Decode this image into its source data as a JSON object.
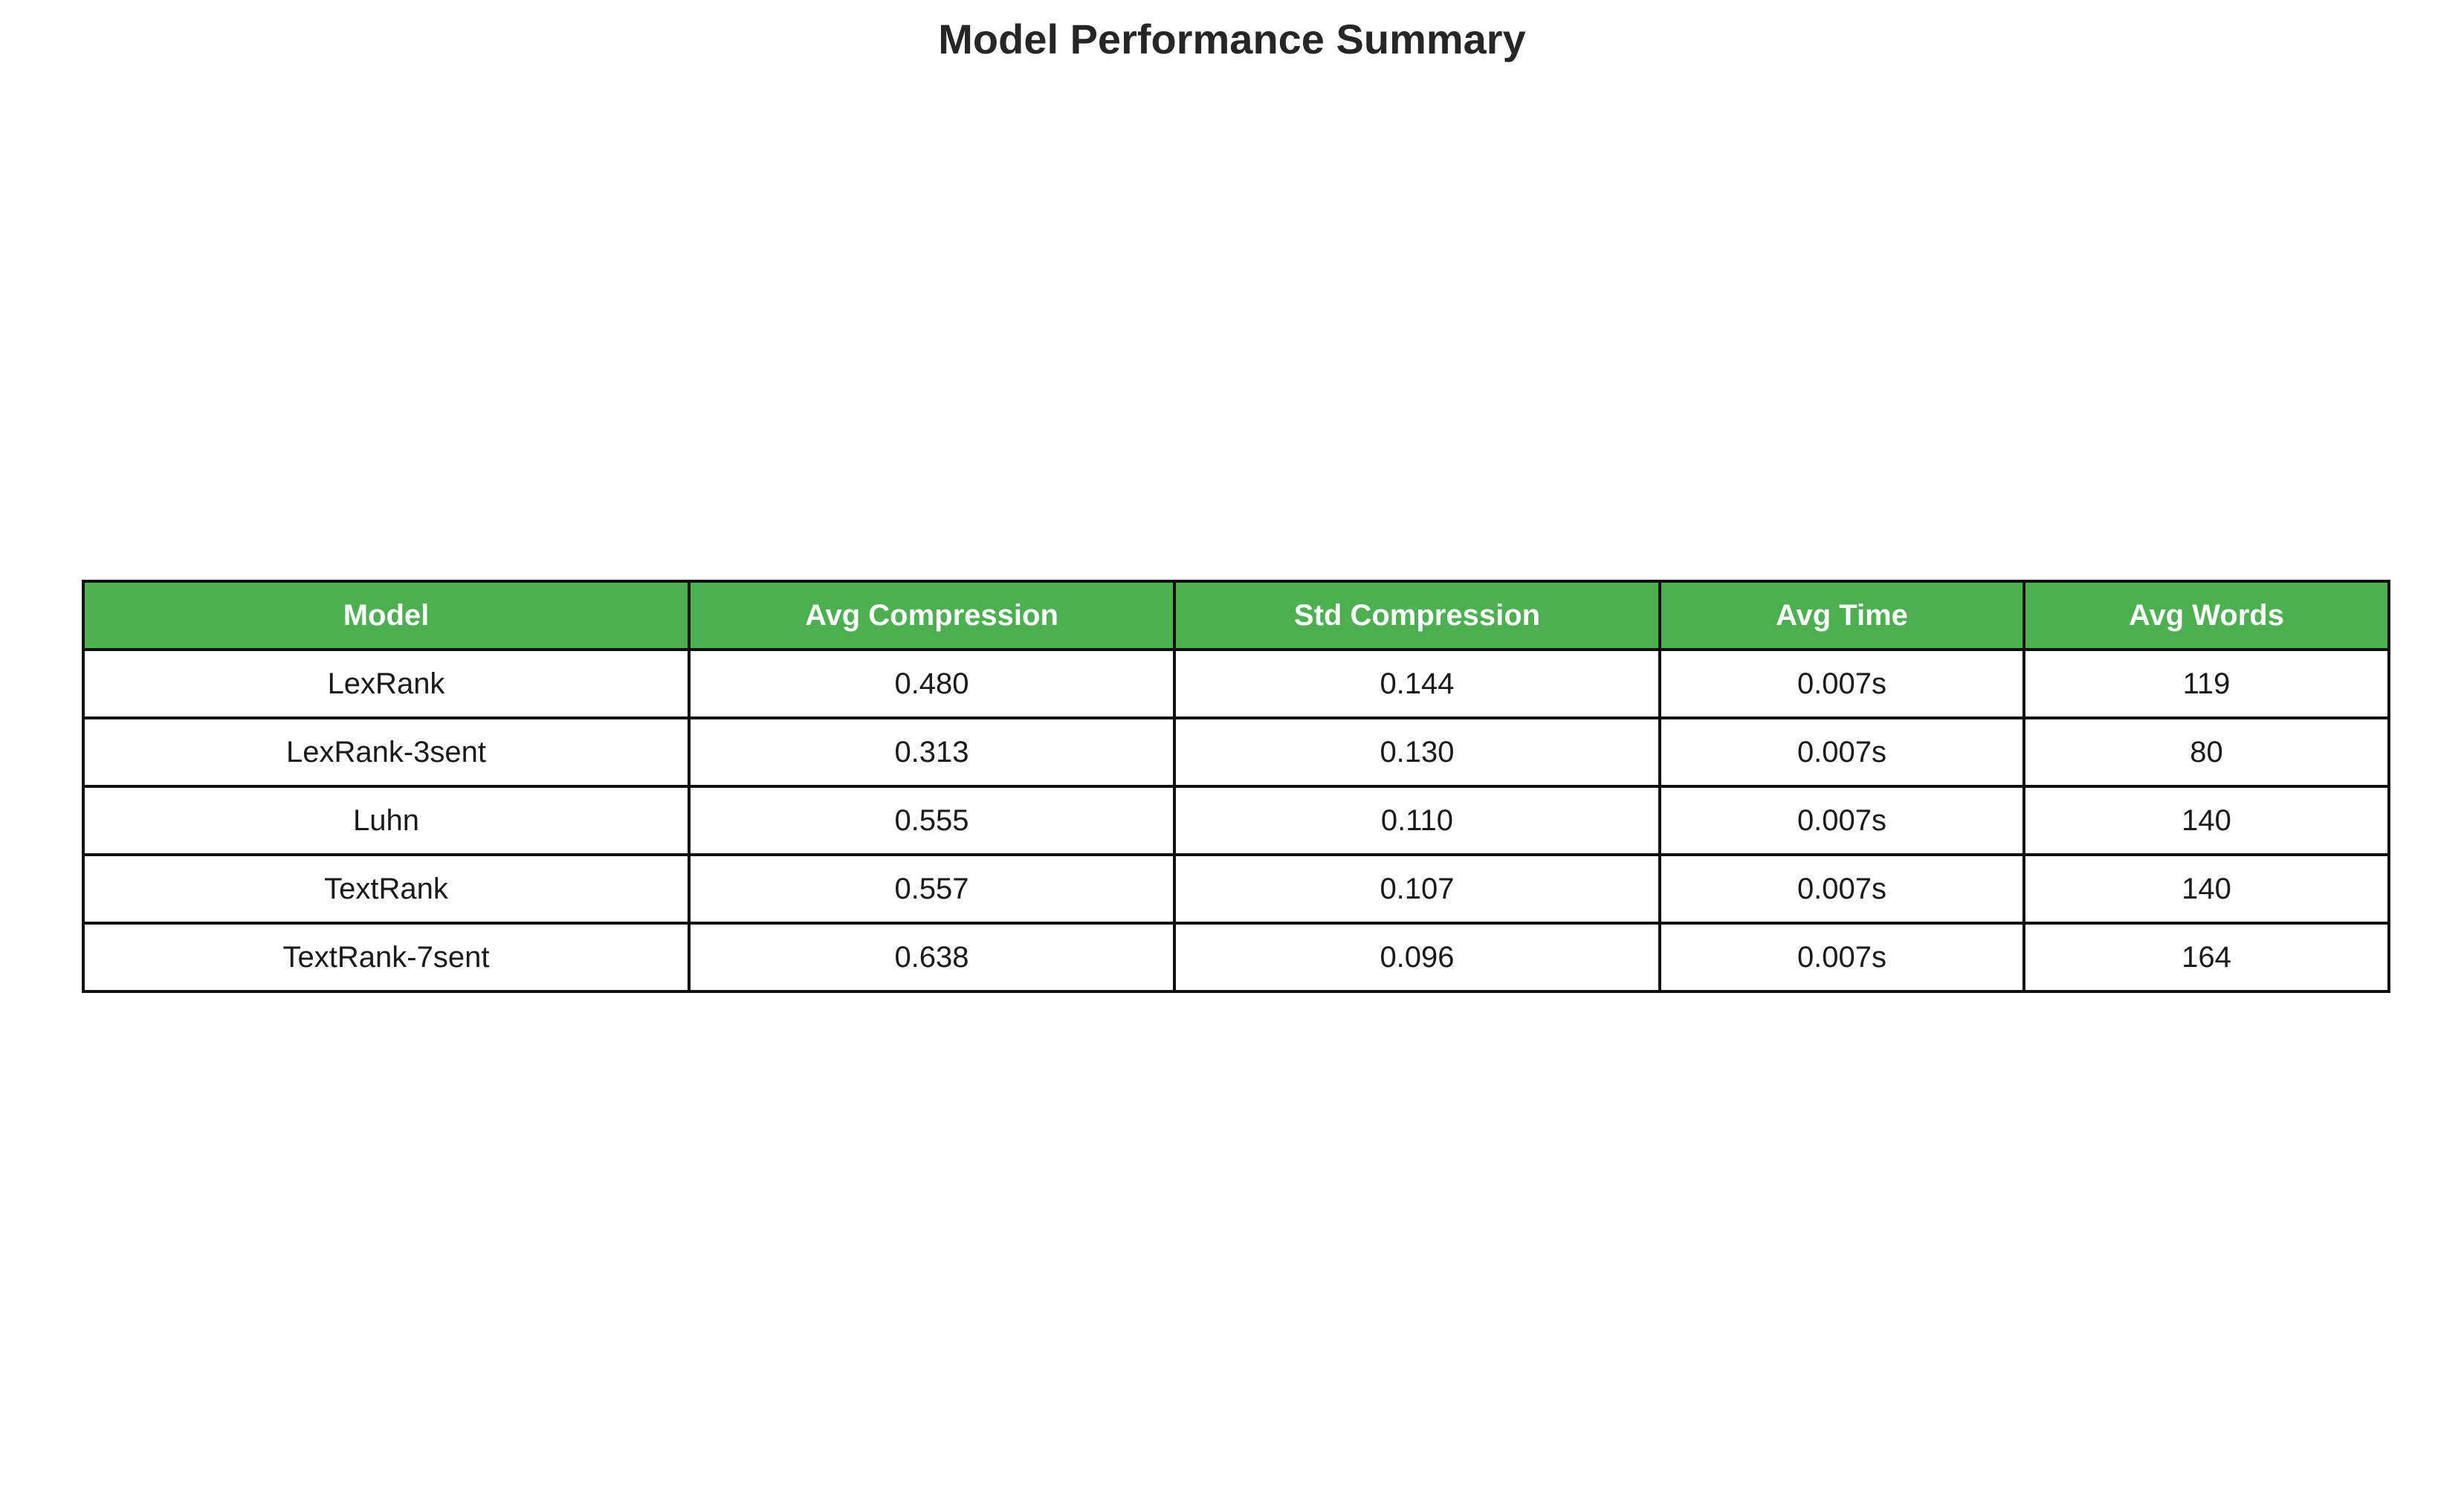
{
  "chart_data": {
    "type": "table",
    "title": "Model Performance Summary",
    "columns": [
      "Model",
      "Avg Compression",
      "Std Compression",
      "Avg Time",
      "Avg Words"
    ],
    "rows": [
      [
        "LexRank",
        "0.480",
        "0.144",
        "0.007s",
        "119"
      ],
      [
        "LexRank-3sent",
        "0.313",
        "0.130",
        "0.007s",
        "80"
      ],
      [
        "Luhn",
        "0.555",
        "0.110",
        "0.007s",
        "140"
      ],
      [
        "TextRank",
        "0.557",
        "0.107",
        "0.007s",
        "140"
      ],
      [
        "TextRank-7sent",
        "0.638",
        "0.096",
        "0.007s",
        "164"
      ]
    ],
    "header_color": "#4caf50",
    "header_text_color": "#ffffff",
    "border_color": "#111111"
  }
}
